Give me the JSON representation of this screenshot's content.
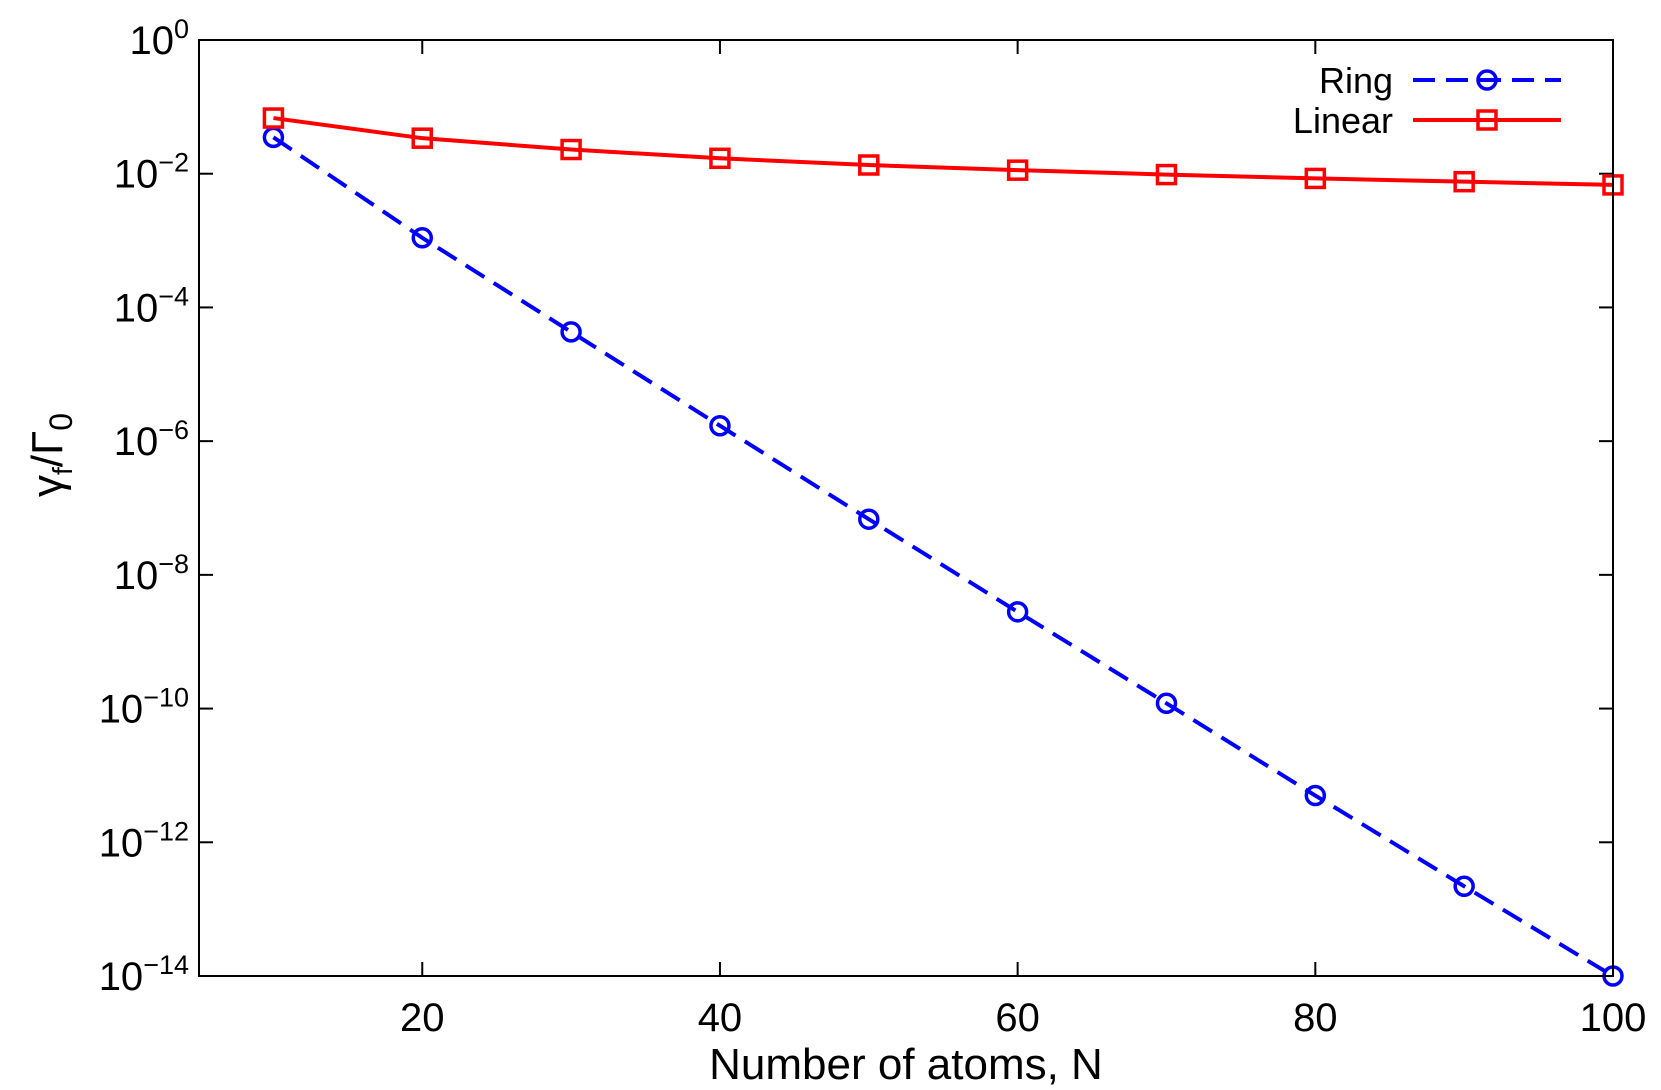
{
  "chart_data": {
    "type": "line",
    "xlabel": "Number of atoms, N",
    "ylabel": {
      "base": "γ",
      "sub": "f",
      "sep": "/",
      "base2": "Γ",
      "sub2": "0"
    },
    "xlim": [
      5,
      100
    ],
    "ylim": [
      1e-14,
      1
    ],
    "y_scale": "log",
    "x_ticks": [
      20,
      40,
      60,
      80,
      100
    ],
    "y_ticks": [
      {
        "value": 1,
        "base": "10",
        "exp": "0"
      },
      {
        "value": 0.01,
        "base": "10",
        "exp": "−2"
      },
      {
        "value": 0.0001,
        "base": "10",
        "exp": "−4"
      },
      {
        "value": 1e-06,
        "base": "10",
        "exp": "−6"
      },
      {
        "value": 1e-08,
        "base": "10",
        "exp": "−8"
      },
      {
        "value": 1e-10,
        "base": "10",
        "exp": "−10"
      },
      {
        "value": 1e-12,
        "base": "10",
        "exp": "−12"
      },
      {
        "value": 1e-14,
        "base": "10",
        "exp": "−14"
      }
    ],
    "grid": false,
    "legend_position": "top-right",
    "series": [
      {
        "name": "Ring",
        "color": "#0000ff",
        "line_style": "dashed",
        "marker": "circle",
        "x": [
          10,
          20,
          30,
          40,
          50,
          60,
          70,
          80,
          90,
          100
        ],
        "y": [
          0.035,
          0.0011,
          4.3e-05,
          1.7e-06,
          6.8e-08,
          2.8e-09,
          1.2e-10,
          5e-12,
          2.2e-13,
          1e-14
        ]
      },
      {
        "name": "Linear",
        "color": "#ff0000",
        "line_style": "solid",
        "marker": "square",
        "x": [
          10,
          20,
          30,
          40,
          50,
          60,
          70,
          80,
          90,
          100
        ],
        "y": [
          0.068,
          0.034,
          0.023,
          0.017,
          0.0135,
          0.0113,
          0.0097,
          0.0085,
          0.0076,
          0.0068
        ]
      }
    ]
  }
}
